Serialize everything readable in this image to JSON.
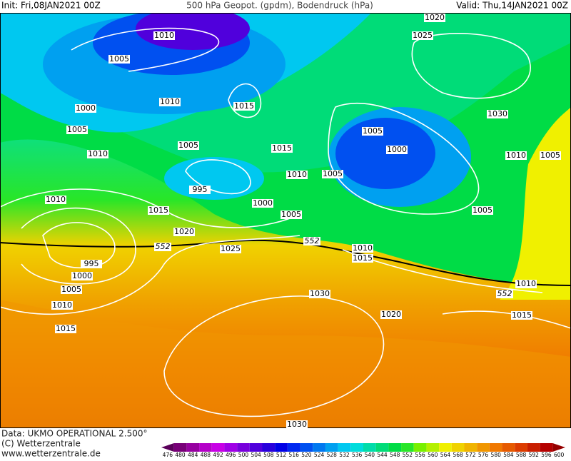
{
  "header": {
    "init": "Init: Fri,08JAN2021 00Z",
    "title": "500 hPa Geopot. (gpdm), Bodendruck (hPa)",
    "valid": "Valid: Thu,14JAN2021 00Z"
  },
  "isobar_labels": [
    1010,
    1005,
    1000,
    1005,
    1010,
    1010,
    1015,
    1020,
    995,
    1000,
    1005,
    1010,
    1015,
    1010,
    1015,
    1005,
    1015,
    995,
    1000,
    1010,
    1005,
    1025,
    1005,
    1005,
    1000,
    1020,
    1025,
    1030,
    1010,
    1005,
    1005,
    1010,
    1015,
    1030,
    1020,
    1010,
    1015,
    1030
  ],
  "geopotential_labels": [
    552,
    552,
    552
  ],
  "footer": {
    "source": "Data: UKMO OPERATIONAL 2.500°",
    "copyright": "(C) Wetterzentrale",
    "url": "www.wetterzentrale.de"
  },
  "colorbar": {
    "labels": [
      476,
      480,
      484,
      488,
      492,
      496,
      500,
      504,
      508,
      512,
      516,
      520,
      524,
      528,
      532,
      536,
      540,
      544,
      548,
      552,
      556,
      560,
      564,
      568,
      572,
      576,
      580,
      584,
      588,
      592,
      596,
      600
    ],
    "colors": [
      "#5a005a",
      "#780078",
      "#9600a0",
      "#b400c8",
      "#c800e6",
      "#a000e6",
      "#7800dc",
      "#5000dc",
      "#2800dc",
      "#0000e6",
      "#0028f0",
      "#0050f0",
      "#0078f0",
      "#00a0f0",
      "#00c8f0",
      "#00dcdc",
      "#00dcaa",
      "#00dc78",
      "#00dc46",
      "#28e628",
      "#78f000",
      "#b4f000",
      "#f0f000",
      "#f0d200",
      "#f0b400",
      "#f09600",
      "#f07800",
      "#e65a00",
      "#dc3c00",
      "#c81e00",
      "#b40000",
      "#960000"
    ]
  }
}
